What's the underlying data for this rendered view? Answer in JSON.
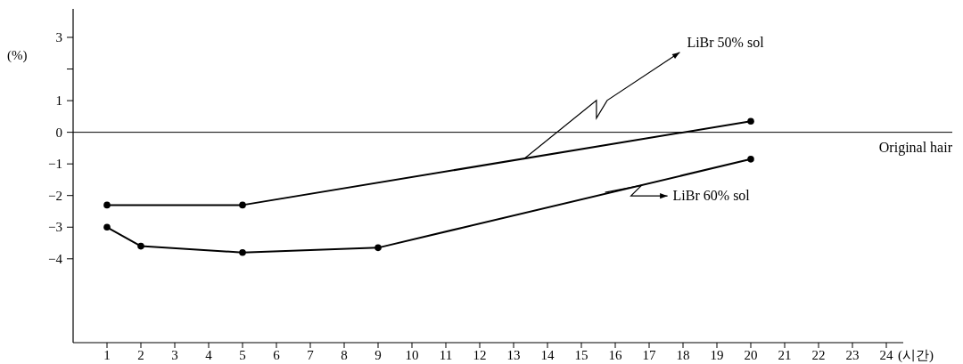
{
  "chart_data": {
    "type": "line",
    "xlabel": "(시간)",
    "ylabel": "(%)",
    "xlim": [
      0,
      24.5
    ],
    "xticks": [
      1,
      2,
      3,
      4,
      5,
      6,
      7,
      8,
      9,
      10,
      11,
      12,
      13,
      14,
      15,
      16,
      17,
      18,
      19,
      20,
      21,
      22,
      23,
      24
    ],
    "ylim": [
      -6.65,
      3.9
    ],
    "yticks": [
      3,
      {
        "value": 2,
        "label": null
      },
      1,
      0,
      -1,
      -2,
      -3,
      -4
    ],
    "grid": false,
    "marker": "circle",
    "line_style": "solid",
    "series": [
      {
        "color": "#000000",
        "x": [
          1,
          5,
          20
        ],
        "values": [
          -2.3,
          -2.3,
          0.35
        ]
      },
      {
        "color": "#000000",
        "x": [
          1,
          2,
          5,
          9,
          20
        ],
        "values": [
          -3.0,
          -3.6,
          -3.8,
          -3.65,
          -0.85
        ]
      }
    ],
    "ref_lines": [
      {
        "axis": "y",
        "value": 0,
        "label": "Original hair"
      }
    ],
    "annotations": [
      {
        "text": "LiBr 50% sol",
        "x": 13.3,
        "y": -0.85
      },
      {
        "text": "LiBr 60% sol",
        "x": 15.7,
        "y": -1.9
      }
    ]
  }
}
